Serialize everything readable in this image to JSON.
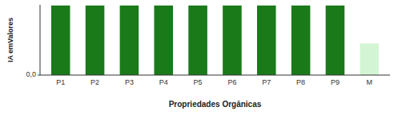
{
  "chart_data": {
    "type": "bar",
    "categories": [
      "P1",
      "P2",
      "P3",
      "P4",
      "P5",
      "P6",
      "P7",
      "P8",
      "P9",
      "M"
    ],
    "values": [
      0.99,
      0.99,
      0.99,
      0.99,
      0.99,
      0.99,
      0.99,
      0.99,
      0.99,
      0.45
    ],
    "colors": [
      "#1a7a1a",
      "#1a7a1a",
      "#1a7a1a",
      "#1a7a1a",
      "#1a7a1a",
      "#1a7a1a",
      "#1a7a1a",
      "#1a7a1a",
      "#1a7a1a",
      "#d4f5d4"
    ],
    "xlabel": "Propriedades Orgânicas",
    "ylabel": "IA emValores",
    "ylim": [
      0,
      1.0
    ],
    "yticks": [
      {
        "value": 0,
        "label": "0,0"
      }
    ],
    "grid": false
  }
}
